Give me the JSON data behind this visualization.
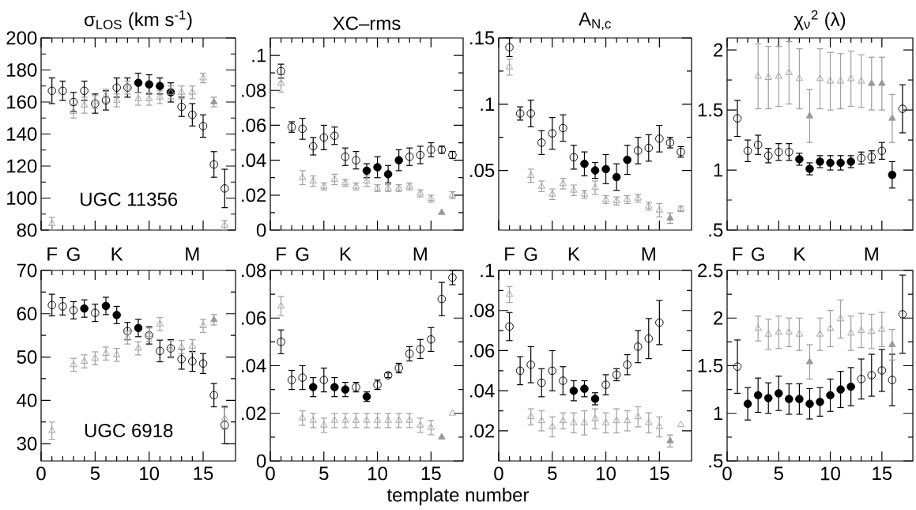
{
  "chart_data": [
    {
      "type": "scatter",
      "title": "σ$_{LOS}$ (km s$^{-1}$)",
      "xlim": [
        0,
        18
      ],
      "ylim": [
        80,
        200
      ],
      "xticks": [
        0,
        5,
        10,
        15
      ],
      "yticks": [
        80,
        100,
        120,
        140,
        160,
        180,
        200
      ],
      "tick_labels": "y",
      "annotations": [
        "UGC 11356",
        {
          "text": "F",
          "x": 1
        },
        {
          "text": "G",
          "x": 3
        },
        {
          "text": "K",
          "x": 7
        },
        {
          "text": "M",
          "x": 14
        }
      ],
      "series": [
        {
          "marker": "circle",
          "color": "#000000",
          "x": [
            1,
            2,
            3,
            4,
            5,
            6,
            7,
            8,
            13,
            14,
            15,
            16,
            17
          ],
          "values": [
            167,
            167,
            160,
            167,
            159,
            161,
            169,
            169,
            157,
            152,
            145,
            121,
            106
          ],
          "errors": [
            8,
            6,
            6,
            6,
            6,
            6,
            6,
            6,
            6,
            7,
            7,
            8,
            12
          ]
        },
        {
          "marker": "circle",
          "color": "#000000",
          "x": [
            9,
            10,
            11,
            12
          ],
          "values": [
            172,
            171,
            170,
            166
          ],
          "errors": [
            6,
            6,
            5,
            6
          ]
        },
        {
          "marker": "triangle",
          "color": "#a0a0a0",
          "x": [
            1,
            3,
            4,
            5,
            6,
            7,
            8,
            9,
            10,
            11,
            12,
            13,
            14,
            15,
            17
          ],
          "values": [
            84,
            154,
            158,
            160,
            164,
            161,
            169,
            162,
            162,
            163,
            166,
            166,
            166,
            175,
            83
          ],
          "errors": [
            4,
            4,
            5,
            4,
            4,
            4,
            4,
            4,
            4,
            4,
            4,
            4,
            4,
            3,
            3
          ]
        },
        {
          "marker": "triangle",
          "color": "#999999",
          "x": [
            16
          ],
          "values": [
            160
          ],
          "errors": [
            3
          ]
        }
      ]
    },
    {
      "type": "scatter",
      "title": "XC–rms",
      "xlim": [
        0,
        18
      ],
      "ylim": [
        0,
        0.11
      ],
      "xticks": [
        0,
        5,
        10,
        15
      ],
      "yticks": [
        0,
        {
          "value": 0.02,
          "label": ".02"
        },
        {
          "value": 0.04,
          "label": ".04"
        },
        {
          "value": 0.06,
          "label": ".06"
        },
        {
          "value": 0.08,
          "label": ".08"
        },
        {
          "value": 0.1,
          "label": ".1"
        }
      ],
      "tick_labels": "y",
      "annotations": [
        {
          "text": "F",
          "x": 1
        },
        {
          "text": "G",
          "x": 3
        },
        {
          "text": "K",
          "x": 7
        },
        {
          "text": "M",
          "x": 14
        }
      ],
      "series": [
        {
          "marker": "circle",
          "color": "#000000",
          "x": [
            1,
            2,
            3,
            4,
            5,
            6,
            7,
            8,
            13,
            14,
            15,
            16,
            17
          ],
          "values": [
            0.091,
            0.059,
            0.058,
            0.048,
            0.053,
            0.054,
            0.042,
            0.04,
            0.042,
            0.043,
            0.046,
            0.046,
            0.043
          ],
          "errors": [
            0.004,
            0.003,
            0.006,
            0.005,
            0.007,
            0.005,
            0.005,
            0.005,
            0.005,
            0.005,
            0.004,
            0.002,
            0.002
          ]
        },
        {
          "marker": "circle",
          "color": "#000000",
          "x": [
            9,
            10,
            11,
            12
          ],
          "values": [
            0.034,
            0.036,
            0.032,
            0.04
          ],
          "errors": [
            0.004,
            0.006,
            0.005,
            0.006
          ]
        },
        {
          "marker": "triangle",
          "color": "#a0a0a0",
          "x": [
            1,
            3,
            4,
            5,
            6,
            7,
            8,
            9,
            10,
            11,
            12,
            13,
            14,
            15,
            17
          ],
          "values": [
            0.084,
            0.03,
            0.028,
            0.025,
            0.029,
            0.027,
            0.025,
            0.028,
            0.024,
            0.024,
            0.024,
            0.025,
            0.021,
            0.018,
            0.02
          ],
          "errors": [
            0.005,
            0.004,
            0.003,
            0.002,
            0.003,
            0.002,
            0.002,
            0.003,
            0.002,
            0.002,
            0.002,
            0.002,
            0.002,
            0.002,
            0.002
          ]
        },
        {
          "marker": "triangle",
          "color": "#999999",
          "x": [
            16
          ],
          "values": [
            0.01
          ],
          "errors": [
            null
          ]
        }
      ]
    },
    {
      "type": "scatter",
      "title": "A$_{N,c}$",
      "xlim": [
        0,
        18
      ],
      "ylim": [
        0.005,
        0.15
      ],
      "xticks": [
        0,
        5,
        10,
        15
      ],
      "yticks": [
        {
          "value": 0.05,
          "label": ".05"
        },
        {
          "value": 0.1,
          "label": ".1"
        },
        {
          "value": 0.15,
          "label": ".15"
        }
      ],
      "tick_labels": "y",
      "annotations": [
        {
          "text": "F",
          "x": 1
        },
        {
          "text": "G",
          "x": 3
        },
        {
          "text": "K",
          "x": 7
        },
        {
          "text": "M",
          "x": 14
        }
      ],
      "series": [
        {
          "marker": "circle",
          "color": "#000000",
          "x": [
            1,
            2,
            3,
            4,
            5,
            6,
            7,
            13,
            14,
            15,
            16,
            17
          ],
          "values": [
            0.143,
            0.093,
            0.093,
            0.071,
            0.078,
            0.082,
            0.06,
            0.065,
            0.067,
            0.074,
            0.071,
            0.064
          ],
          "errors": [
            0.007,
            0.005,
            0.01,
            0.009,
            0.012,
            0.01,
            0.009,
            0.01,
            0.01,
            0.01,
            0.004,
            0.004
          ]
        },
        {
          "marker": "circle",
          "color": "#000000",
          "x": [
            8,
            9,
            10,
            11,
            12
          ],
          "values": [
            0.055,
            0.05,
            0.051,
            0.045,
            0.058
          ],
          "errors": [
            0.009,
            0.006,
            0.011,
            0.01,
            0.011
          ]
        },
        {
          "marker": "triangle",
          "color": "#a0a0a0",
          "x": [
            1,
            3,
            4,
            5,
            6,
            7,
            8,
            9,
            10,
            11,
            12,
            13,
            14,
            15,
            17
          ],
          "values": [
            0.128,
            0.046,
            0.038,
            0.032,
            0.04,
            0.035,
            0.032,
            0.037,
            0.028,
            0.027,
            0.028,
            0.029,
            0.023,
            0.02,
            0.021
          ],
          "errors": [
            0.006,
            0.005,
            0.004,
            0.004,
            0.004,
            0.004,
            0.003,
            0.005,
            0.003,
            0.003,
            0.003,
            0.003,
            0.003,
            0.005,
            0.002
          ]
        },
        {
          "marker": "triangle",
          "color": "#999999",
          "x": [
            16
          ],
          "values": [
            0.014
          ],
          "errors": [
            0.004
          ]
        }
      ]
    },
    {
      "type": "scatter",
      "title": "χ$_{ν}$$^{2}$ (λ)",
      "xlim": [
        0,
        18
      ],
      "ylim": [
        0.5,
        2.1
      ],
      "xticks": [
        0,
        5,
        10,
        15
      ],
      "yticks": [
        {
          "value": 0.5,
          "label": ".5"
        },
        1,
        1.5,
        2
      ],
      "tick_labels": "y",
      "annotations": [
        {
          "text": "F",
          "x": 1
        },
        {
          "text": "G",
          "x": 3
        },
        {
          "text": "K",
          "x": 7
        },
        {
          "text": "M",
          "x": 14
        }
      ],
      "series": [
        {
          "marker": "circle",
          "color": "#000000",
          "x": [
            1,
            2,
            3,
            4,
            5,
            6,
            13,
            14,
            15,
            17
          ],
          "values": [
            1.43,
            1.16,
            1.21,
            1.12,
            1.15,
            1.15,
            1.1,
            1.11,
            1.16,
            1.51
          ],
          "errors": [
            0.15,
            0.09,
            0.08,
            0.06,
            0.07,
            0.07,
            0.05,
            0.05,
            0.07,
            0.2
          ]
        },
        {
          "marker": "circle",
          "color": "#000000",
          "x": [
            7,
            8,
            9,
            10,
            11,
            12,
            16
          ],
          "values": [
            1.09,
            1.01,
            1.07,
            1.06,
            1.06,
            1.07,
            0.96
          ],
          "errors": [
            0.05,
            0.05,
            0.05,
            0.06,
            0.06,
            0.05,
            0.11
          ]
        },
        {
          "marker": "triangle",
          "color": "#a0a0a0",
          "x": [
            3,
            4,
            5,
            6,
            7,
            9,
            10,
            11,
            12,
            13
          ],
          "values": [
            1.78,
            1.77,
            1.78,
            1.81,
            1.76,
            1.76,
            1.74,
            1.74,
            1.76,
            1.74
          ],
          "errors": [
            0.27,
            0.26,
            0.25,
            0.26,
            0.25,
            0.25,
            0.24,
            0.23,
            0.23,
            0.22
          ]
        },
        {
          "marker": "triangle",
          "color": "#999999",
          "x": [
            8,
            14,
            15,
            16
          ],
          "values": [
            1.45,
            1.72,
            1.72,
            1.43
          ],
          "errors": [
            0.22,
            0.22,
            0.22,
            0.2
          ]
        }
      ]
    },
    {
      "type": "scatter",
      "xlim": [
        0,
        18
      ],
      "ylim": [
        26,
        70
      ],
      "xticks": [
        0,
        5,
        10,
        15
      ],
      "yticks": [
        30,
        40,
        50,
        60,
        70
      ],
      "annotations": [
        "UGC 6918"
      ],
      "series": [
        {
          "marker": "circle",
          "color": "#000000",
          "x": [
            1,
            2,
            3,
            5,
            8,
            10,
            11,
            12,
            13,
            14,
            15,
            16,
            17
          ],
          "values": [
            62,
            61.7,
            60.8,
            60.2,
            56,
            55,
            51.4,
            52,
            49.5,
            49,
            48.5,
            41.2,
            34.3
          ],
          "errors": [
            2.5,
            2,
            2,
            2,
            2,
            2,
            2.5,
            2,
            2.3,
            2.3,
            2.3,
            2.7,
            4.3
          ]
        },
        {
          "marker": "circle",
          "color": "#000000",
          "x": [
            4,
            6,
            7,
            9
          ],
          "values": [
            61.2,
            61.8,
            59.7,
            56.7
          ],
          "errors": [
            2,
            2,
            2,
            2
          ]
        },
        {
          "marker": "triangle",
          "color": "#a0a0a0",
          "x": [
            1,
            3,
            4,
            5,
            6,
            7,
            8,
            9,
            10,
            11,
            12,
            13,
            14,
            15,
            17
          ],
          "values": [
            33,
            48.2,
            49,
            49.7,
            50.8,
            50.5,
            54.5,
            52,
            55.2,
            57.6,
            51.8,
            52.3,
            52.5,
            57.2,
            35.8
          ],
          "errors": [
            2,
            1.5,
            1.5,
            1.5,
            1.5,
            1.5,
            1.5,
            1.5,
            1.5,
            1.5,
            2,
            1.5,
            1.5,
            1.5,
            2.5
          ]
        },
        {
          "marker": "triangle",
          "color": "#999999",
          "x": [
            16
          ],
          "values": [
            58.6
          ],
          "errors": [
            1.2
          ]
        }
      ]
    },
    {
      "type": "scatter",
      "xlabel": "template number",
      "xlim": [
        0,
        18
      ],
      "ylim": [
        0,
        0.08
      ],
      "xticks": [
        0,
        5,
        10,
        15
      ],
      "yticks": [
        0,
        {
          "value": 0.02,
          "label": ".02"
        },
        {
          "value": 0.04,
          "label": ".04"
        },
        {
          "value": 0.06,
          "label": ".06"
        },
        {
          "value": 0.08,
          "label": ".08"
        }
      ],
      "series": [
        {
          "marker": "circle",
          "color": "#000000",
          "x": [
            1,
            2,
            3,
            5,
            8,
            10,
            11,
            12,
            13,
            14,
            15,
            16,
            17
          ],
          "values": [
            0.05,
            0.034,
            0.035,
            0.034,
            0.031,
            0.032,
            0.036,
            0.039,
            0.045,
            0.047,
            0.051,
            0.068,
            0.077
          ],
          "errors": [
            0.005,
            0.004,
            0.005,
            0.005,
            0.002,
            0.002,
            0.001,
            0.002,
            0.003,
            0.004,
            0.005,
            0.007,
            0.003
          ]
        },
        {
          "marker": "circle",
          "color": "#000000",
          "x": [
            4,
            6,
            7,
            9
          ],
          "values": [
            0.031,
            0.031,
            0.03,
            0.027
          ],
          "errors": [
            0.004,
            0.004,
            0.003,
            0.002
          ]
        },
        {
          "marker": "triangle",
          "color": "#a0a0a0",
          "x": [
            1,
            3,
            4,
            5,
            6,
            7,
            8,
            9,
            10,
            11,
            12,
            13,
            14,
            15,
            17
          ],
          "values": [
            0.065,
            0.018,
            0.017,
            0.015,
            0.017,
            0.017,
            0.017,
            0.017,
            0.017,
            0.017,
            0.017,
            0.017,
            0.015,
            0.014,
            0.02
          ],
          "errors": [
            0.004,
            0.003,
            0.003,
            0.003,
            0.003,
            0.003,
            0.003,
            0.003,
            0.003,
            0.003,
            0.003,
            0.003,
            0.003,
            0.003,
            null
          ]
        },
        {
          "marker": "triangle",
          "color": "#999999",
          "x": [
            16
          ],
          "values": [
            0.01
          ],
          "errors": [
            null
          ]
        }
      ]
    },
    {
      "type": "scatter",
      "xlim": [
        0,
        18
      ],
      "ylim": [
        0.005,
        0.1
      ],
      "xticks": [
        0,
        5,
        10,
        15
      ],
      "yticks": [
        {
          "value": 0.02,
          "label": ".02"
        },
        {
          "value": 0.04,
          "label": ".04"
        },
        {
          "value": 0.06,
          "label": ".06"
        },
        {
          "value": 0.08,
          "label": ".08"
        },
        {
          "value": 0.1,
          "label": ".1"
        }
      ],
      "series": [
        {
          "marker": "circle",
          "color": "#000000",
          "x": [
            1,
            2,
            3,
            4,
            5,
            6,
            10,
            11,
            12,
            13,
            14,
            15
          ],
          "values": [
            0.072,
            0.05,
            0.053,
            0.044,
            0.05,
            0.045,
            0.043,
            0.048,
            0.053,
            0.062,
            0.066,
            0.074
          ],
          "errors": [
            0.007,
            0.007,
            0.009,
            0.007,
            0.01,
            0.007,
            0.005,
            0.003,
            0.005,
            0.008,
            0.01,
            0.011
          ]
        },
        {
          "marker": "circle",
          "color": "#000000",
          "x": [
            7,
            8,
            9
          ],
          "values": [
            0.04,
            0.041,
            0.036
          ],
          "errors": [
            0.005,
            0.004,
            0.003
          ]
        },
        {
          "marker": "triangle",
          "color": "#a0a0a0",
          "x": [
            1,
            3,
            4,
            5,
            6,
            7,
            8,
            9,
            10,
            11,
            12,
            13,
            14,
            15,
            17
          ],
          "values": [
            0.088,
            0.027,
            0.025,
            0.022,
            0.025,
            0.024,
            0.024,
            0.026,
            0.024,
            0.025,
            0.025,
            0.027,
            0.024,
            0.022,
            0.023
          ],
          "errors": [
            0.004,
            0.004,
            0.005,
            0.005,
            0.004,
            0.005,
            0.006,
            0.005,
            0.005,
            0.006,
            0.005,
            0.005,
            0.005,
            0.005,
            null
          ]
        },
        {
          "marker": "triangle",
          "color": "#999999",
          "x": [
            16
          ],
          "values": [
            0.015
          ],
          "errors": [
            0.003
          ]
        }
      ]
    },
    {
      "type": "scatter",
      "xlim": [
        0,
        18
      ],
      "ylim": [
        0.5,
        2.5
      ],
      "xticks": [
        0,
        5,
        10,
        15
      ],
      "yticks": [
        {
          "value": 0.5,
          "label": ".5"
        },
        1,
        1.5,
        2,
        2.5
      ],
      "series": [
        {
          "marker": "circle",
          "color": "#000000",
          "x": [
            1,
            13,
            14,
            15,
            16,
            17
          ],
          "values": [
            1.49,
            1.36,
            1.4,
            1.45,
            1.35,
            2.04
          ],
          "errors": [
            0.28,
            0.21,
            0.22,
            0.22,
            0.27,
            0.41
          ]
        },
        {
          "marker": "circle",
          "color": "#000000",
          "x": [
            2,
            3,
            4,
            5,
            6,
            7,
            8,
            9,
            10,
            11,
            12
          ],
          "values": [
            1.1,
            1.19,
            1.16,
            1.21,
            1.15,
            1.15,
            1.1,
            1.12,
            1.19,
            1.25,
            1.28
          ],
          "errors": [
            0.17,
            0.18,
            0.16,
            0.18,
            0.16,
            0.16,
            0.16,
            0.15,
            0.17,
            0.19,
            0.2
          ]
        },
        {
          "marker": "triangle",
          "color": "#a0a0a0",
          "x": [
            3,
            4,
            5,
            6,
            7,
            9,
            10,
            11,
            12,
            13,
            14,
            15
          ],
          "values": [
            1.89,
            1.83,
            1.85,
            1.85,
            1.83,
            1.83,
            1.89,
            1.99,
            1.84,
            1.87,
            1.86,
            1.88
          ],
          "errors": [
            0.13,
            0.16,
            0.17,
            0.15,
            0.17,
            0.17,
            0.19,
            0.2,
            0.18,
            0.18,
            0.18,
            0.18
          ]
        },
        {
          "marker": "triangle",
          "color": "#999999",
          "x": [
            8,
            16
          ],
          "values": [
            1.54,
            1.72
          ],
          "errors": [
            0.18,
            0.16
          ]
        }
      ]
    }
  ]
}
